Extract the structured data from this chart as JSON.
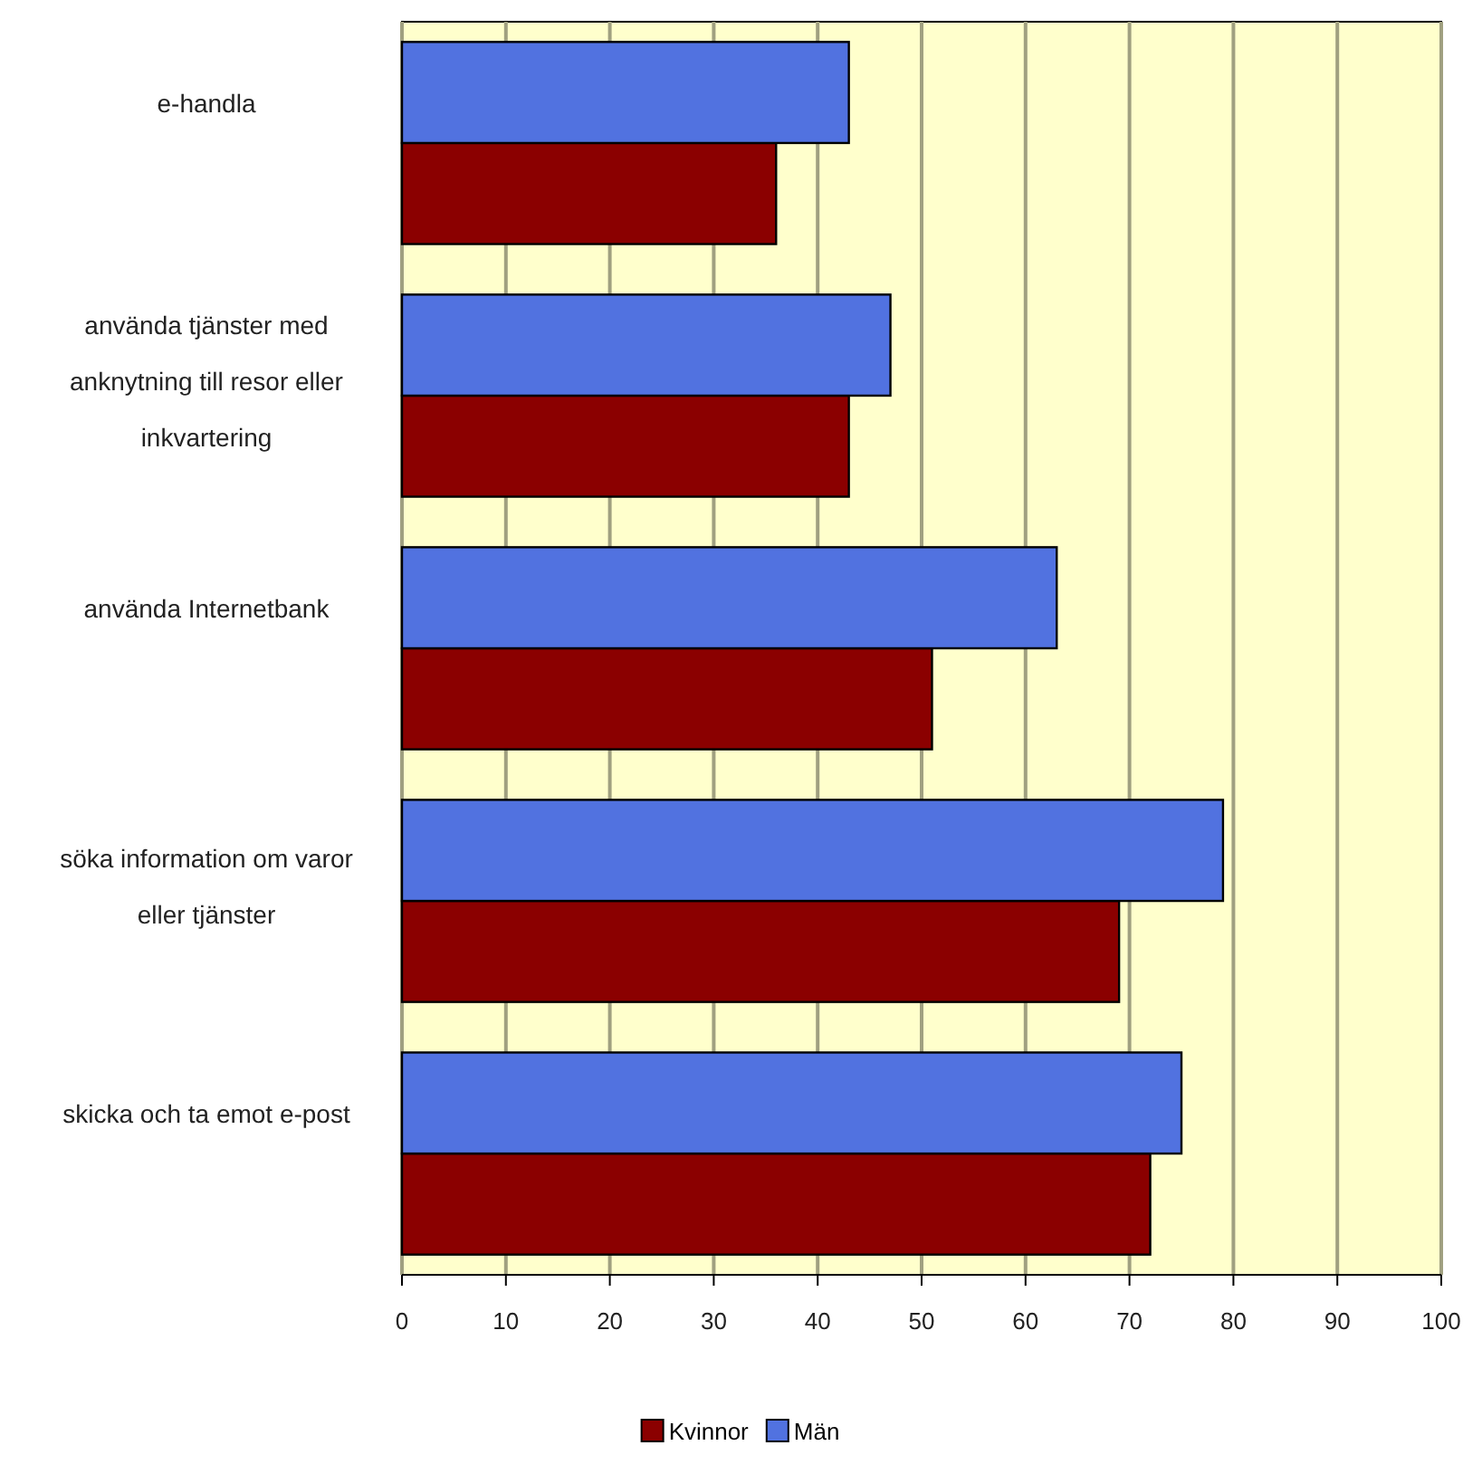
{
  "chart_data": {
    "type": "bar",
    "orientation": "horizontal",
    "categories": [
      "e-handla",
      "använda tjänster med anknytning till resor eller inkvartering",
      "använda Internetbank",
      "söka information om varor eller tjänster",
      "skicka och ta emot e-post"
    ],
    "series": [
      {
        "name": "Kvinnor",
        "color": "#8b0000",
        "values": [
          36,
          43,
          51,
          69,
          72
        ]
      },
      {
        "name": "Män",
        "color": "#5172e0",
        "values": [
          43,
          47,
          63,
          79,
          75
        ]
      }
    ],
    "xlim": [
      0,
      100
    ],
    "xticks": [
      0,
      10,
      20,
      30,
      40,
      50,
      60,
      70,
      80,
      90,
      100
    ],
    "grid": "x",
    "legend": "bottom"
  }
}
